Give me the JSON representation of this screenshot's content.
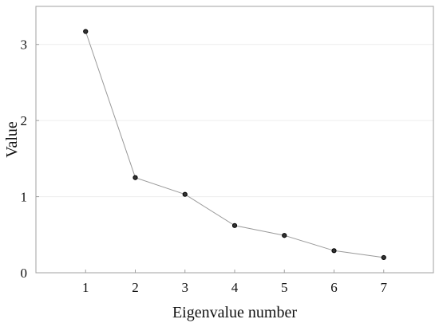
{
  "chart_data": {
    "type": "line",
    "title": "",
    "xlabel": "Eigenvalue number",
    "ylabel": "Value",
    "x": [
      1,
      2,
      3,
      4,
      5,
      6,
      7
    ],
    "series": [
      {
        "values": [
          3.17,
          1.25,
          1.03,
          0.62,
          0.49,
          0.29,
          0.2
        ]
      }
    ],
    "xlim": [
      0,
      8
    ],
    "ylim": [
      0,
      3.5
    ],
    "xticks": [
      "1",
      "2",
      "3",
      "4",
      "5",
      "6",
      "7"
    ],
    "yticks": [
      "0",
      "1",
      "2",
      "3"
    ],
    "grid": "horizontal",
    "legend": "none",
    "colors": {
      "line": "#9a9a9a",
      "marker_fill": "#333333",
      "marker_stroke": "#000000",
      "frame": "#a0a0a0",
      "grid": "#ededed"
    }
  }
}
